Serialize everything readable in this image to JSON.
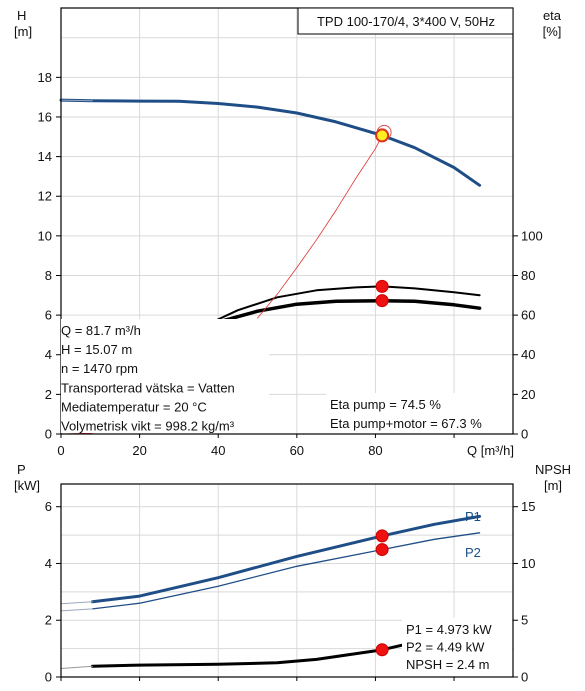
{
  "chart_data": [
    {
      "type": "line",
      "panel": "head-efficiency",
      "title": "TPD 100-170/4, 3*400 V, 50Hz",
      "xlabel": "Q [m³/h]",
      "ylabel_left": [
        "H",
        "[m]"
      ],
      "ylabel_right": [
        "eta",
        "[%]"
      ],
      "xlim": [
        0,
        115
      ],
      "ylim_left": [
        0,
        21.5
      ],
      "ylim_right": [
        0,
        215
      ],
      "xticks": [
        0,
        20,
        40,
        60,
        80
      ],
      "yticks_left": [
        0,
        2,
        4,
        6,
        8,
        10,
        12,
        14,
        16,
        18
      ],
      "yticks_right": [
        0,
        20,
        40,
        60,
        80,
        100
      ],
      "grid": true,
      "series": [
        {
          "id": "H",
          "axis": "left",
          "color": "#1f4e87",
          "width": 3,
          "x": [
            0,
            8,
            20,
            30,
            40,
            50,
            60,
            70,
            81.7,
            90,
            100,
            106.5
          ],
          "y": [
            16.85,
            16.82,
            16.8,
            16.79,
            16.68,
            16.5,
            16.2,
            15.75,
            15.07,
            14.45,
            13.45,
            12.55
          ]
        },
        {
          "id": "H-extension",
          "axis": "left",
          "color": "#9aa9bd",
          "width": 1,
          "x": [
            0,
            8
          ],
          "y": [
            16.85,
            16.82
          ]
        },
        {
          "id": "eta-pump",
          "axis": "right",
          "color": "#000000",
          "width": 2,
          "x": [
            38,
            45,
            55,
            65,
            75,
            81.7,
            90,
            100,
            106.5
          ],
          "y": [
            56,
            62.5,
            69,
            72.5,
            74,
            74.5,
            73.5,
            71.5,
            70
          ]
        },
        {
          "id": "eta-pump-motor",
          "axis": "right",
          "color": "#000000",
          "width": 3.5,
          "x": [
            40,
            50,
            60,
            70,
            81.7,
            90,
            100,
            106.5
          ],
          "y": [
            56.5,
            62,
            65.5,
            67,
            67.3,
            67,
            65.2,
            63.5
          ]
        },
        {
          "id": "system-curve",
          "axis": "left",
          "color": "#e03030",
          "width": 0.8,
          "x": [
            50,
            55,
            60,
            65,
            70,
            75,
            80,
            81.7
          ],
          "y": [
            5.85,
            7.05,
            8.4,
            9.8,
            11.3,
            12.9,
            14.4,
            15.07
          ]
        },
        {
          "id": "system-curve-start",
          "axis": "left",
          "color": "#e03030",
          "width": 0.8,
          "x": [
            0,
            8
          ],
          "y": [
            0,
            0.05
          ]
        }
      ],
      "operating_points": [
        {
          "axis": "left",
          "x": 81.7,
          "y": 15.07,
          "style": "yellow"
        },
        {
          "axis": "right",
          "x": 81.7,
          "y": 74.5,
          "style": "red"
        },
        {
          "axis": "right",
          "x": 81.7,
          "y": 67.3,
          "style": "red"
        }
      ],
      "info_lines": [
        "Q = 81.7 m³/h",
        "H = 15.07 m",
        "n = 1470 rpm",
        "Transporterad vätska = Vatten",
        "Mediatemperatur = 20 °C",
        "Volymetrisk vikt = 998.2 kg/m³"
      ],
      "eta_lines": [
        "Eta pump = 74.5 %",
        "Eta pump+motor = 67.3 %"
      ]
    },
    {
      "type": "line",
      "panel": "power-npsh",
      "xlabel": "",
      "ylabel_left": [
        "P",
        "[kW]"
      ],
      "ylabel_right": [
        "NPSH",
        "[m]"
      ],
      "xlim": [
        0,
        115
      ],
      "ylim_left": [
        0,
        6.8
      ],
      "ylim_right": [
        0,
        17
      ],
      "yticks_left": [
        0,
        2,
        4,
        6
      ],
      "yticks_right": [
        0,
        5,
        10,
        15
      ],
      "grid": true,
      "series": [
        {
          "id": "P1",
          "name": "P1",
          "axis": "left",
          "color": "#1f4e87",
          "width": 3,
          "x": [
            8,
            20,
            40,
            60,
            81.7,
            95,
            106.5
          ],
          "y": [
            2.65,
            2.85,
            3.5,
            4.25,
            4.973,
            5.38,
            5.66
          ]
        },
        {
          "id": "P1-extension",
          "axis": "left",
          "color": "#9aa9bd",
          "width": 1,
          "x": [
            0,
            8
          ],
          "y": [
            2.58,
            2.65
          ]
        },
        {
          "id": "P2",
          "name": "P2",
          "axis": "left",
          "color": "#1f4e87",
          "width": 1.3,
          "x": [
            8,
            20,
            40,
            60,
            81.7,
            95,
            106.5
          ],
          "y": [
            2.4,
            2.6,
            3.2,
            3.9,
            4.49,
            4.85,
            5.08
          ]
        },
        {
          "id": "P2-extension",
          "axis": "left",
          "color": "#9aa9bd",
          "width": 1,
          "x": [
            0,
            8
          ],
          "y": [
            2.33,
            2.4
          ]
        },
        {
          "id": "NPSH",
          "axis": "right",
          "color": "#000000",
          "width": 3,
          "x": [
            8,
            20,
            40,
            55,
            65,
            72,
            81.7,
            88
          ],
          "y": [
            0.95,
            1.05,
            1.12,
            1.25,
            1.55,
            1.9,
            2.4,
            2.9
          ]
        },
        {
          "id": "NPSH-extension",
          "axis": "right",
          "color": "#999999",
          "width": 1,
          "x": [
            0,
            8
          ],
          "y": [
            0.75,
            0.95
          ]
        }
      ],
      "operating_points": [
        {
          "axis": "left",
          "x": 81.7,
          "y": 4.973,
          "style": "red"
        },
        {
          "axis": "left",
          "x": 81.7,
          "y": 4.49,
          "style": "red"
        },
        {
          "axis": "right",
          "x": 81.7,
          "y": 2.4,
          "style": "red"
        }
      ],
      "info_lines": [
        "P1 = 4.973 kW",
        "P2 = 4.49 kW",
        "NPSH = 2.4 m"
      ]
    }
  ]
}
